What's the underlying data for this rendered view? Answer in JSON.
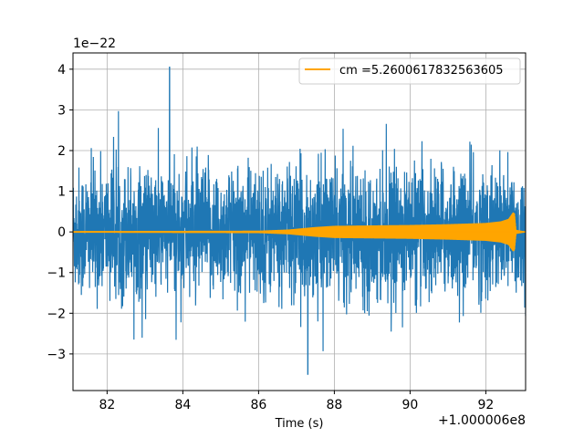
{
  "chart_data": {
    "type": "line",
    "xlabel": "Time (s)",
    "ylabel": "",
    "x_offset_label": "+1.000006e8",
    "y_scale_label": "1e−22",
    "xlim": [
      81.1,
      93.05
    ],
    "ylim": [
      -3.9,
      4.4
    ],
    "x_ticks": [
      82,
      84,
      86,
      88,
      90,
      92
    ],
    "y_ticks": [
      -3,
      -2,
      -1,
      0,
      1,
      2,
      3,
      4
    ],
    "x_tick_labels": [
      "82",
      "84",
      "86",
      "88",
      "90",
      "92"
    ],
    "y_tick_labels": [
      "−3",
      "−2",
      "−1",
      "0",
      "1",
      "2",
      "3",
      "4"
    ],
    "grid": true,
    "legend_position": "top-right",
    "series": [
      {
        "name": "",
        "color": "#1f77b4",
        "description_values": {
          "typical_envelope": [
            -2.2,
            2.4
          ],
          "max": 4.05,
          "max_x": 83.65,
          "min": -3.5,
          "min_x": 87.3
        }
      },
      {
        "name": "cm =5.2600617832563605",
        "color": "#ffa500",
        "envelope": {
          "x": [
            81.1,
            86.0,
            86.8,
            87.5,
            88.0,
            89.0,
            90.0,
            91.0,
            92.0,
            92.4,
            92.6,
            92.72,
            92.76,
            92.8,
            93.05
          ],
          "amp": [
            0.02,
            0.03,
            0.06,
            0.12,
            0.15,
            0.16,
            0.17,
            0.19,
            0.22,
            0.26,
            0.32,
            0.48,
            0.45,
            0.05,
            0.01
          ]
        }
      }
    ]
  },
  "legend": {
    "label": "cm =5.2600617832563605"
  }
}
